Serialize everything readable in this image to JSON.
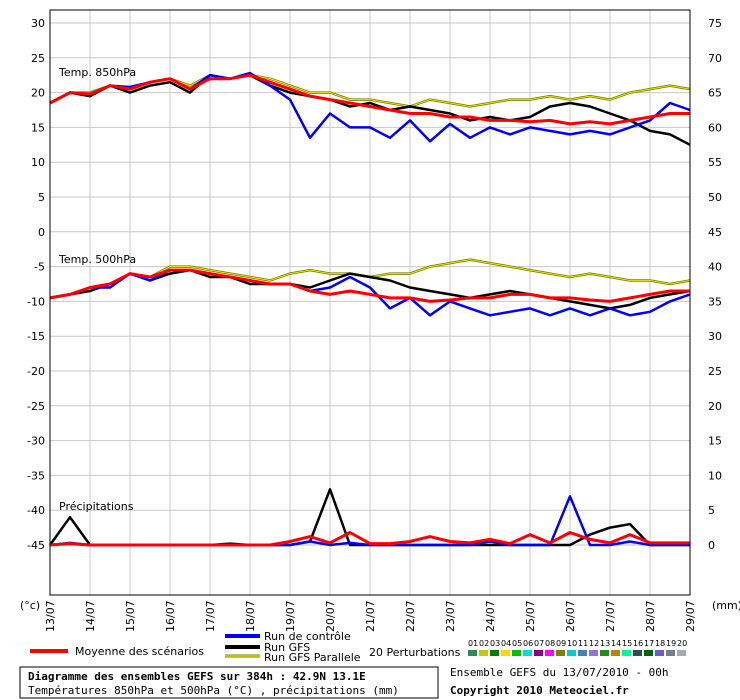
{
  "chart_data": {
    "type": "line",
    "title": "Diagramme des ensembles GEFS sur 384h : 42.9N 13.1E",
    "subtitle": "Températures 850hPa et 500hPa (°C) , précipitations (mm)",
    "ensemble_label": "Ensemble GEFS du 13/07/2010 - 00h",
    "copyright": "Copyright 2010 Meteociel.fr",
    "left_axis_unit": "(°c)",
    "right_axis_unit": "(mm)",
    "left_ticks": [
      30,
      25,
      20,
      15,
      10,
      5,
      0,
      -5,
      -10,
      -15,
      -20,
      -25,
      -30,
      -35,
      -40,
      -45
    ],
    "right_ticks": [
      75,
      70,
      65,
      60,
      55,
      50,
      45,
      40,
      35,
      30,
      25,
      20,
      15,
      10,
      5,
      0
    ],
    "ylim_left": [
      -50,
      30
    ],
    "x_dates": [
      "13/07",
      "14/07",
      "15/07",
      "16/07",
      "17/07",
      "18/07",
      "19/07",
      "20/07",
      "21/07",
      "22/07",
      "23/07",
      "24/07",
      "25/07",
      "26/07",
      "27/07",
      "28/07",
      "29/07"
    ],
    "section_labels": [
      "Temp. 850hPa",
      "Temp. 500hPa",
      "Précipitations"
    ],
    "legend": {
      "mean": "Moyenne des scénarios",
      "control": "Run de contrôle",
      "gfs": "Run GFS",
      "gfs_parallel": "Run GFS Parallele",
      "perturbations": "20 Perturbations",
      "perturbation_numbers": [
        "01",
        "02",
        "03",
        "04",
        "05",
        "06",
        "07",
        "08",
        "09",
        "10",
        "11",
        "12",
        "13",
        "14",
        "15",
        "16",
        "17",
        "18",
        "19",
        "20"
      ],
      "perturbation_colors": [
        "#2e8b57",
        "#c8c800",
        "#008000",
        "#ffd700",
        "#00c000",
        "#00e0e0",
        "#8b008b",
        "#ff00ff",
        "#808000",
        "#00ced1",
        "#4682b4",
        "#9370db",
        "#228b22",
        "#b8860b",
        "#00fa9a",
        "#2f4f4f",
        "#006400",
        "#6a5acd",
        "#708090",
        "#a9a9a9"
      ]
    },
    "colors": {
      "mean": "#ff0000",
      "control": "#0000ff",
      "gfs": "#000000",
      "gfs_parallel": "#808000"
    },
    "series": [
      {
        "name": "Moyenne des scénarios",
        "group": "t850",
        "x": [
          0,
          0.5,
          1,
          1.5,
          2,
          2.5,
          3,
          3.5,
          4,
          4.5,
          5,
          5.5,
          6,
          6.5,
          7,
          7.5,
          8,
          8.5,
          9,
          9.5,
          10,
          10.5,
          11,
          11.5,
          12,
          12.5,
          13,
          13.5,
          14,
          14.5,
          15,
          15.5,
          16
        ],
        "values": [
          18.5,
          20,
          19.8,
          21,
          20.5,
          21.5,
          22,
          20.5,
          22,
          22,
          22.5,
          21.5,
          20.5,
          19.5,
          19,
          18.5,
          18,
          17.5,
          17,
          17,
          16.5,
          16.5,
          16,
          16,
          15.8,
          16,
          15.5,
          15.8,
          15.5,
          16,
          16.5,
          17,
          17
        ]
      },
      {
        "name": "Run de contrôle",
        "group": "t850",
        "x": [
          0,
          0.5,
          1,
          1.5,
          2,
          2.5,
          3,
          3.5,
          4,
          4.5,
          5,
          5.5,
          6,
          6.5,
          7,
          7.5,
          8,
          8.5,
          9,
          9.5,
          10,
          10.5,
          11,
          11.5,
          12,
          12.5,
          13,
          13.5,
          14,
          14.5,
          15,
          15.5,
          16
        ],
        "values": [
          18.5,
          20,
          19.8,
          21,
          20.8,
          21.5,
          22,
          20.5,
          22.5,
          22,
          22.8,
          21,
          19,
          13.5,
          17,
          15,
          15,
          13.5,
          16,
          13,
          15.5,
          13.5,
          15,
          14,
          15,
          14.5,
          14,
          14.5,
          14,
          15,
          16,
          18.5,
          17.5
        ]
      },
      {
        "name": "Run GFS",
        "group": "t850",
        "x": [
          0,
          0.5,
          1,
          1.5,
          2,
          2.5,
          3,
          3.5,
          4,
          4.5,
          5,
          5.5,
          6,
          6.5,
          7,
          7.5,
          8,
          8.5,
          9,
          9.5,
          10,
          10.5,
          11,
          11.5,
          12,
          12.5,
          13,
          13.5,
          14,
          14.5,
          15,
          15.5,
          16
        ],
        "values": [
          18.5,
          20,
          19.5,
          21,
          20,
          21,
          21.5,
          20,
          22.5,
          22,
          22.5,
          21,
          20,
          19.5,
          19,
          18,
          18.5,
          17.5,
          18,
          17.5,
          17,
          16,
          16.5,
          16,
          16.5,
          18,
          18.5,
          18,
          17,
          16,
          14.5,
          14,
          12.5
        ]
      },
      {
        "name": "Run GFS Parallele",
        "group": "t850",
        "x": [
          0,
          0.5,
          1,
          1.5,
          2,
          2.5,
          3,
          3.5,
          4,
          4.5,
          5,
          5.5,
          6,
          6.5,
          7,
          7.5,
          8,
          8.5,
          9,
          9.5,
          10,
          10.5,
          11,
          11.5,
          12,
          12.5,
          13,
          13.5,
          14,
          14.5,
          15,
          15.5,
          16
        ],
        "values": [
          18.5,
          20,
          20,
          21,
          20.5,
          21.5,
          22,
          21,
          22.5,
          22,
          22.5,
          22,
          21,
          20,
          20,
          19,
          19,
          18.5,
          18,
          19,
          18.5,
          18,
          18.5,
          19,
          19,
          19.5,
          19,
          19.5,
          19,
          20,
          20.5,
          21,
          20.5
        ]
      },
      {
        "name": "Moyenne des scénarios",
        "group": "t500",
        "x": [
          0,
          0.5,
          1,
          1.5,
          2,
          2.5,
          3,
          3.5,
          4,
          4.5,
          5,
          5.5,
          6,
          6.5,
          7,
          7.5,
          8,
          8.5,
          9,
          9.5,
          10,
          10.5,
          11,
          11.5,
          12,
          12.5,
          13,
          13.5,
          14,
          14.5,
          15,
          15.5,
          16
        ],
        "values": [
          -9.5,
          -9,
          -8,
          -7.5,
          -6,
          -6.5,
          -5.5,
          -5.5,
          -6,
          -6.5,
          -7,
          -7.5,
          -7.5,
          -8.5,
          -9,
          -8.5,
          -9,
          -9.5,
          -9.5,
          -10,
          -9.8,
          -9.5,
          -9.5,
          -9,
          -9,
          -9.5,
          -9.5,
          -9.8,
          -10,
          -9.5,
          -9,
          -8.5,
          -8.5
        ]
      },
      {
        "name": "Run de contrôle",
        "group": "t500",
        "x": [
          0,
          0.5,
          1,
          1.5,
          2,
          2.5,
          3,
          3.5,
          4,
          4.5,
          5,
          5.5,
          6,
          6.5,
          7,
          7.5,
          8,
          8.5,
          9,
          9.5,
          10,
          10.5,
          11,
          11.5,
          12,
          12.5,
          13,
          13.5,
          14,
          14.5,
          15,
          15.5,
          16
        ],
        "values": [
          -9.5,
          -9,
          -8,
          -8,
          -6,
          -7,
          -5.5,
          -5.5,
          -6,
          -6.5,
          -7,
          -7.5,
          -7.5,
          -8.5,
          -8,
          -6.5,
          -8,
          -11,
          -9.5,
          -12,
          -10,
          -11,
          -12,
          -11.5,
          -11,
          -12,
          -11,
          -12,
          -11,
          -12,
          -11.5,
          -10,
          -9
        ]
      },
      {
        "name": "Run GFS",
        "group": "t500",
        "x": [
          0,
          0.5,
          1,
          1.5,
          2,
          2.5,
          3,
          3.5,
          4,
          4.5,
          5,
          5.5,
          6,
          6.5,
          7,
          7.5,
          8,
          8.5,
          9,
          9.5,
          10,
          10.5,
          11,
          11.5,
          12,
          12.5,
          13,
          13.5,
          14,
          14.5,
          15,
          15.5,
          16
        ],
        "values": [
          -9.5,
          -9,
          -8.5,
          -7.5,
          -6,
          -7,
          -6,
          -5.5,
          -6.5,
          -6.5,
          -7.5,
          -7.5,
          -7.5,
          -8,
          -7,
          -6,
          -6.5,
          -7,
          -8,
          -8.5,
          -9,
          -9.5,
          -9,
          -8.5,
          -9,
          -9.5,
          -10,
          -10.5,
          -11,
          -10.5,
          -9.5,
          -9,
          -8.5
        ]
      },
      {
        "name": "Run GFS Parallele",
        "group": "t500",
        "x": [
          0,
          0.5,
          1,
          1.5,
          2,
          2.5,
          3,
          3.5,
          4,
          4.5,
          5,
          5.5,
          6,
          6.5,
          7,
          7.5,
          8,
          8.5,
          9,
          9.5,
          10,
          10.5,
          11,
          11.5,
          12,
          12.5,
          13,
          13.5,
          14,
          14.5,
          15,
          15.5,
          16
        ],
        "values": [
          -9.5,
          -9,
          -8,
          -7.5,
          -6,
          -6.5,
          -5,
          -5,
          -5.5,
          -6,
          -6.5,
          -7,
          -6,
          -5.5,
          -6,
          -6,
          -6.5,
          -6,
          -6,
          -5,
          -4.5,
          -4,
          -4.5,
          -5,
          -5.5,
          -6,
          -6.5,
          -6,
          -6.5,
          -7,
          -7,
          -7.5,
          -7
        ]
      },
      {
        "name": "Moyenne des scénarios",
        "group": "precip",
        "x": [
          0,
          0.5,
          1,
          1.5,
          2,
          2.5,
          3,
          3.5,
          4,
          4.5,
          5,
          5.5,
          6,
          6.5,
          7,
          7.5,
          8,
          8.5,
          9,
          9.5,
          10,
          10.5,
          11,
          11.5,
          12,
          12.5,
          13,
          13.5,
          14,
          14.5,
          15,
          15.5,
          16
        ],
        "values": [
          0,
          0.2,
          0,
          0,
          0,
          0,
          0,
          0,
          0,
          0,
          0,
          0,
          0.5,
          1.2,
          0.3,
          1.8,
          0.2,
          0.2,
          0.5,
          1.2,
          0.5,
          0.3,
          0.8,
          0.2,
          1.5,
          0.3,
          1.8,
          0.8,
          0.3,
          1.5,
          0.3,
          0.3,
          0.3
        ]
      },
      {
        "name": "Run de contrôle",
        "group": "precip",
        "x": [
          0,
          0.5,
          1,
          1.5,
          2,
          2.5,
          3,
          3.5,
          4,
          4.5,
          5,
          5.5,
          6,
          6.5,
          7,
          7.5,
          8,
          8.5,
          9,
          9.5,
          10,
          10.5,
          11,
          11.5,
          12,
          12.5,
          13,
          13.5,
          14,
          14.5,
          15,
          15.5,
          16
        ],
        "values": [
          0,
          0.3,
          0,
          0,
          0,
          0,
          0,
          0,
          0,
          0,
          0,
          0,
          0,
          0.5,
          0,
          0.3,
          0,
          0,
          0,
          0,
          0,
          0,
          0.5,
          0,
          0,
          0,
          7,
          0,
          0,
          0.5,
          0,
          0,
          0
        ]
      },
      {
        "name": "Run GFS",
        "group": "precip",
        "x": [
          0,
          0.5,
          1,
          1.5,
          2,
          2.5,
          3,
          3.5,
          4,
          4.5,
          5,
          5.5,
          6,
          6.5,
          7,
          7.5,
          8,
          8.5,
          9,
          9.5,
          10,
          10.5,
          11,
          11.5,
          12,
          12.5,
          13,
          13.5,
          14,
          14.5,
          15,
          15.5,
          16
        ],
        "values": [
          0,
          4,
          0,
          0,
          0,
          0,
          0,
          0,
          0,
          0.2,
          0,
          0,
          0,
          0.5,
          8,
          0,
          0,
          0,
          0,
          0,
          0,
          0,
          0,
          0,
          0,
          0,
          0,
          1.5,
          2.5,
          3,
          0,
          0,
          0
        ]
      }
    ]
  }
}
